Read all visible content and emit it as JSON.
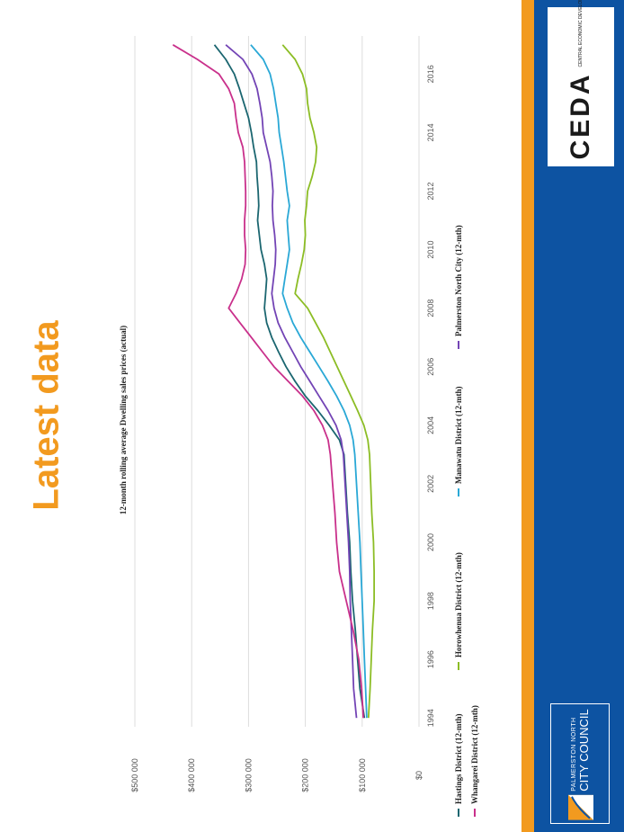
{
  "slide": {
    "title": "Latest data",
    "ceda_logo": "CEDA",
    "ceda_subtitle": "Central Economic Development Agency",
    "council_line1": "PALMERSTON NORTH",
    "council_line2": "CITY COUNCIL",
    "colors": {
      "accent": "#f29a1f",
      "panel_blue": "#0d53a2"
    }
  },
  "chart_data": {
    "type": "line",
    "title": "12-month rolling average Dwelling sales prices (actual)",
    "xlabel": "",
    "ylabel": "",
    "xlim": [
      1993.7,
      2017.3
    ],
    "ylim": [
      0,
      500000
    ],
    "x_ticks": [
      1994,
      1996,
      1998,
      2000,
      2002,
      2004,
      2006,
      2008,
      2010,
      2012,
      2014,
      2016
    ],
    "y_ticks": [
      0,
      100000,
      200000,
      300000,
      400000,
      500000
    ],
    "y_tick_labels": [
      "$0",
      "$100 000",
      "$200 000",
      "$300 000",
      "$400 000",
      "$500 000"
    ],
    "grid": true,
    "legend_position": "bottom",
    "series": [
      {
        "name": "Hastings District (12-mth)",
        "color": "#1b6670",
        "x": [
          1994,
          1995,
          1996,
          1997,
          1998,
          1999,
          2000,
          2001,
          2002,
          2003,
          2003.5,
          2004,
          2004.5,
          2005,
          2005.5,
          2006,
          2006.5,
          2007,
          2007.5,
          2008,
          2008.5,
          2009,
          2009.5,
          2010,
          2010.5,
          2011,
          2011.5,
          2012,
          2012.5,
          2013,
          2013.5,
          2014,
          2014.5,
          2015,
          2015.5,
          2016,
          2016.5,
          2017
        ],
        "values": [
          96000,
          104000,
          108000,
          112000,
          117000,
          120000,
          122000,
          126000,
          129000,
          132000,
          140000,
          158000,
          178000,
          200000,
          218000,
          234000,
          247000,
          259000,
          268000,
          272000,
          270000,
          268000,
          272000,
          278000,
          281000,
          284000,
          282000,
          283000,
          285000,
          286000,
          291000,
          295000,
          300000,
          308000,
          316000,
          325000,
          340000,
          360000
        ]
      },
      {
        "name": "Horowhenua District (12-mth)",
        "color": "#8cbd25",
        "x": [
          1994,
          1995,
          1996,
          1997,
          1998,
          1999,
          2000,
          2001,
          2002,
          2003,
          2003.5,
          2004,
          2004.5,
          2005,
          2005.5,
          2006,
          2006.5,
          2007,
          2007.5,
          2008,
          2008.5,
          2009,
          2009.5,
          2010,
          2010.5,
          2011,
          2011.5,
          2012,
          2012.5,
          2013,
          2013.5,
          2014,
          2014.5,
          2015,
          2015.5,
          2016,
          2016.5,
          2017
        ],
        "values": [
          89000,
          86000,
          84000,
          82000,
          79000,
          79000,
          80000,
          83000,
          85000,
          87000,
          90000,
          97000,
          108000,
          120000,
          132000,
          144000,
          156000,
          168000,
          182000,
          196000,
          218000,
          213000,
          207000,
          202000,
          200000,
          201000,
          198000,
          196000,
          188000,
          182000,
          180000,
          185000,
          192000,
          196000,
          198000,
          205000,
          218000,
          240000
        ]
      },
      {
        "name": "Manawatu District (12-mth)",
        "color": "#2aa8d6",
        "x": [
          1994,
          1995,
          1996,
          1997,
          1998,
          1999,
          2000,
          2001,
          2002,
          2003,
          2003.5,
          2004,
          2004.5,
          2005,
          2005.5,
          2006,
          2006.5,
          2007,
          2007.5,
          2008,
          2008.5,
          2009,
          2009.5,
          2010,
          2010.5,
          2011,
          2011.5,
          2012,
          2012.5,
          2013,
          2013.5,
          2014,
          2014.5,
          2015,
          2015.5,
          2016,
          2016.5,
          2017
        ],
        "values": [
          92000,
          94000,
          96000,
          98000,
          100000,
          102000,
          104000,
          107000,
          110000,
          113000,
          116000,
          122000,
          132000,
          145000,
          160000,
          176000,
          192000,
          208000,
          222000,
          232000,
          240000,
          236000,
          232000,
          228000,
          230000,
          232000,
          228000,
          232000,
          235000,
          238000,
          242000,
          246000,
          248000,
          252000,
          256000,
          262000,
          274000,
          296000
        ]
      },
      {
        "name": "Palmerston North City (12-mth)",
        "color": "#7344b5",
        "x": [
          1994,
          1995,
          1996,
          1997,
          1998,
          1999,
          2000,
          2001,
          2002,
          2003,
          2003.5,
          2004,
          2004.5,
          2005,
          2005.5,
          2006,
          2006.5,
          2007,
          2007.5,
          2008,
          2008.5,
          2009,
          2009.5,
          2010,
          2010.5,
          2011,
          2011.5,
          2012,
          2012.5,
          2013,
          2013.5,
          2014,
          2014.5,
          2015,
          2015.5,
          2016,
          2016.5,
          2017
        ],
        "values": [
          110000,
          115000,
          117000,
          119000,
          121000,
          122000,
          124000,
          127000,
          130000,
          133000,
          137000,
          146000,
          160000,
          176000,
          192000,
          208000,
          222000,
          236000,
          248000,
          255000,
          259000,
          256000,
          253000,
          252000,
          254000,
          257000,
          258000,
          257000,
          259000,
          262000,
          268000,
          274000,
          276000,
          280000,
          285000,
          294000,
          310000,
          340000
        ]
      },
      {
        "name": "Whangarei District (12-mth)",
        "color": "#c9308b",
        "x": [
          1994,
          1995,
          1996,
          1997,
          1998,
          1999,
          2000,
          2001,
          2002,
          2003,
          2003.5,
          2004,
          2004.5,
          2005,
          2005.5,
          2006,
          2006.5,
          2007,
          2007.5,
          2008,
          2008.5,
          2009,
          2009.5,
          2010,
          2010.5,
          2011,
          2011.5,
          2012,
          2012.5,
          2013,
          2013.5,
          2014,
          2014.5,
          2015,
          2015.5,
          2016,
          2016.5,
          2017
        ],
        "values": [
          98000,
          101000,
          106000,
          116000,
          128000,
          140000,
          145000,
          148000,
          152000,
          156000,
          160000,
          170000,
          185000,
          205000,
          230000,
          255000,
          275000,
          295000,
          315000,
          335000,
          322000,
          312000,
          306000,
          305000,
          307000,
          307000,
          305000,
          305000,
          306000,
          307000,
          310000,
          318000,
          322000,
          325000,
          335000,
          352000,
          390000,
          433000
        ]
      }
    ]
  }
}
